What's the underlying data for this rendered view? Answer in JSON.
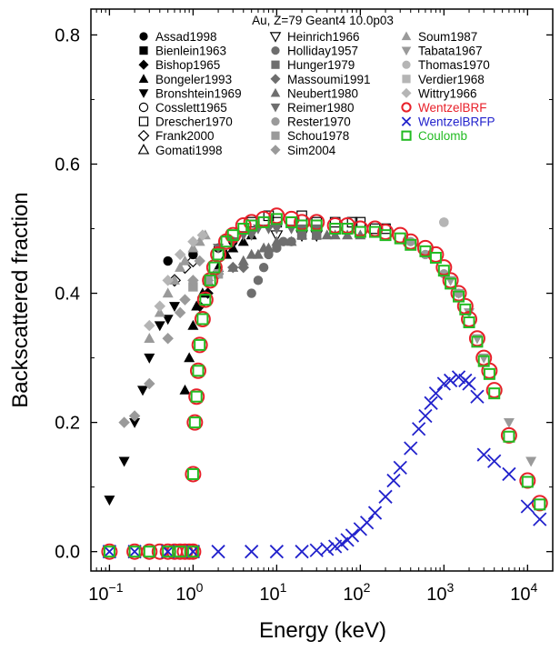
{
  "chart_data": {
    "type": "scatter",
    "title": "Au, Z=79 Geant4 10.0p03",
    "xlabel": "Energy (keV)",
    "ylabel": "Backscattered fraction",
    "xscale": "log",
    "xlim": [
      0.06,
      20000
    ],
    "ylim": [
      -0.03,
      0.84
    ],
    "x_ticks": [
      {
        "value": 0.1,
        "base": "10",
        "exp": "−1"
      },
      {
        "value": 1,
        "base": "10",
        "exp": "0"
      },
      {
        "value": 10,
        "base": "10",
        "exp": "1"
      },
      {
        "value": 100,
        "base": "10",
        "exp": "2"
      },
      {
        "value": 1000,
        "base": "10",
        "exp": "3"
      },
      {
        "value": 10000,
        "base": "10",
        "exp": "4"
      }
    ],
    "y_ticks": [
      {
        "value": 0.0,
        "label": "0.0"
      },
      {
        "value": 0.2,
        "label": "0.2"
      },
      {
        "value": 0.4,
        "label": "0.4"
      },
      {
        "value": 0.6,
        "label": "0.6"
      },
      {
        "value": 0.8,
        "label": "0.8"
      }
    ],
    "grid": false,
    "legend_position": "top",
    "series": [
      {
        "name": "Assad1998",
        "marker": "circle",
        "color": "#000000",
        "points": [
          [
            0.5,
            0.45
          ],
          [
            1,
            0.46
          ],
          [
            2,
            0.47
          ],
          [
            3,
            0.48
          ]
        ]
      },
      {
        "name": "Bienlein1963",
        "marker": "square",
        "color": "#000000",
        "points": []
      },
      {
        "name": "Bishop1965",
        "marker": "diamond",
        "color": "#000000",
        "points": [
          [
            1.2,
            0.38
          ],
          [
            1.5,
            0.4
          ]
        ]
      },
      {
        "name": "Bongeler1993",
        "marker": "triangle-up",
        "color": "#000000",
        "points": [
          [
            0.8,
            0.25
          ],
          [
            0.9,
            0.3
          ],
          [
            1,
            0.35
          ],
          [
            1.1,
            0.38
          ],
          [
            1.3,
            0.4
          ],
          [
            1.5,
            0.42
          ],
          [
            2,
            0.44
          ],
          [
            2.5,
            0.46
          ],
          [
            3,
            0.47
          ],
          [
            4,
            0.48
          ],
          [
            5,
            0.49
          ]
        ]
      },
      {
        "name": "Bronshtein1969",
        "marker": "triangle-down",
        "color": "#000000",
        "points": [
          [
            0.1,
            0.08
          ],
          [
            0.15,
            0.14
          ],
          [
            0.2,
            0.2
          ],
          [
            0.25,
            0.25
          ],
          [
            0.3,
            0.3
          ],
          [
            0.4,
            0.35
          ],
          [
            0.5,
            0.36
          ],
          [
            0.6,
            0.38
          ]
        ]
      },
      {
        "name": "Cosslett1965",
        "marker": "circle-open",
        "color": "#000000",
        "points": []
      },
      {
        "name": "Drescher1970",
        "marker": "square-open",
        "color": "#000000",
        "points": [
          [
            5,
            0.51
          ],
          [
            8,
            0.52
          ],
          [
            10,
            0.51
          ],
          [
            15,
            0.51
          ],
          [
            20,
            0.52
          ],
          [
            30,
            0.51
          ],
          [
            50,
            0.51
          ],
          [
            80,
            0.51
          ],
          [
            100,
            0.51
          ],
          [
            150,
            0.5
          ],
          [
            200,
            0.5
          ]
        ]
      },
      {
        "name": "Frank2000",
        "marker": "diamond-open",
        "color": "#000000",
        "points": [
          [
            0.6,
            0.42
          ],
          [
            0.8,
            0.44
          ],
          [
            1,
            0.45
          ]
        ]
      },
      {
        "name": "Gomati1998",
        "marker": "triangle-up-open",
        "color": "#000000",
        "points": []
      },
      {
        "name": "Heinrich1966",
        "marker": "triangle-down-open",
        "color": "#000000",
        "points": [
          [
            10,
            0.49
          ],
          [
            20,
            0.49
          ],
          [
            30,
            0.49
          ]
        ]
      },
      {
        "name": "Holliday1957",
        "marker": "circle",
        "color": "#6e6e6e",
        "points": [
          [
            5,
            0.4
          ],
          [
            6,
            0.42
          ],
          [
            7,
            0.44
          ],
          [
            8,
            0.46
          ],
          [
            10,
            0.47
          ],
          [
            12,
            0.48
          ],
          [
            15,
            0.48
          ],
          [
            20,
            0.49
          ],
          [
            1000,
            0.51
          ]
        ]
      },
      {
        "name": "Hunger1979",
        "marker": "square",
        "color": "#6e6e6e",
        "points": [
          [
            20,
            0.49
          ],
          [
            30,
            0.49
          ]
        ]
      },
      {
        "name": "Massoumi1991",
        "marker": "diamond",
        "color": "#6e6e6e",
        "points": [
          [
            1.5,
            0.42
          ],
          [
            2,
            0.43
          ],
          [
            3,
            0.44
          ],
          [
            4,
            0.44
          ]
        ]
      },
      {
        "name": "Neubert1980",
        "marker": "triangle-up",
        "color": "#6e6e6e",
        "points": [
          [
            3,
            0.44
          ],
          [
            4,
            0.45
          ],
          [
            5,
            0.46
          ],
          [
            6,
            0.46
          ],
          [
            7,
            0.47
          ],
          [
            8,
            0.47
          ],
          [
            10,
            0.48
          ],
          [
            15,
            0.48
          ],
          [
            20,
            0.49
          ],
          [
            30,
            0.49
          ],
          [
            40,
            0.49
          ],
          [
            50,
            0.49
          ],
          [
            70,
            0.49
          ],
          [
            100,
            0.49
          ]
        ]
      },
      {
        "name": "Reimer1980",
        "marker": "triangle-down",
        "color": "#6e6e6e",
        "points": [
          [
            2,
            0.47
          ],
          [
            3,
            0.48
          ],
          [
            4,
            0.49
          ],
          [
            5,
            0.49
          ],
          [
            6,
            0.5
          ],
          [
            8,
            0.5
          ],
          [
            10,
            0.5
          ],
          [
            15,
            0.5
          ],
          [
            20,
            0.5
          ],
          [
            30,
            0.5
          ]
        ]
      },
      {
        "name": "Rester1970",
        "marker": "circle",
        "color": "#9a9a9a",
        "points": [
          [
            400,
            0.48
          ],
          [
            600,
            0.46
          ],
          [
            1000,
            0.43
          ],
          [
            1500,
            0.4
          ]
        ]
      },
      {
        "name": "Schou1978",
        "marker": "square",
        "color": "#9a9a9a",
        "points": [
          [
            1,
            0.41
          ],
          [
            1.5,
            0.42
          ],
          [
            2,
            0.43
          ]
        ]
      },
      {
        "name": "Sim2004",
        "marker": "diamond",
        "color": "#9a9a9a",
        "points": [
          [
            0.15,
            0.2
          ],
          [
            0.2,
            0.21
          ],
          [
            0.3,
            0.26
          ],
          [
            0.5,
            0.33
          ],
          [
            0.7,
            0.37
          ],
          [
            0.8,
            0.39
          ],
          [
            1,
            0.42
          ],
          [
            1.2,
            0.45
          ]
        ]
      },
      {
        "name": "Soum1987",
        "marker": "triangle-up",
        "color": "#9a9a9a",
        "points": [
          [
            0.3,
            0.33
          ],
          [
            0.4,
            0.37
          ],
          [
            0.5,
            0.4
          ],
          [
            0.6,
            0.42
          ],
          [
            0.7,
            0.44
          ],
          [
            0.8,
            0.45
          ],
          [
            1,
            0.47
          ],
          [
            1.2,
            0.48
          ],
          [
            1.4,
            0.49
          ]
        ]
      },
      {
        "name": "Tabata1967",
        "marker": "triangle-down",
        "color": "#9a9a9a",
        "points": [
          [
            1200,
            0.42
          ],
          [
            1500,
            0.4
          ],
          [
            2000,
            0.37
          ],
          [
            2500,
            0.33
          ],
          [
            3000,
            0.3
          ],
          [
            6000,
            0.2
          ],
          [
            11000,
            0.14
          ]
        ]
      },
      {
        "name": "Thomas1970",
        "marker": "circle",
        "color": "#b5b5b5",
        "points": [
          [
            1000,
            0.51
          ]
        ]
      },
      {
        "name": "Verdier1968",
        "marker": "square",
        "color": "#b5b5b5",
        "points": []
      },
      {
        "name": "Wittry1966",
        "marker": "diamond",
        "color": "#b5b5b5",
        "points": [
          [
            0.3,
            0.35
          ],
          [
            0.4,
            0.38
          ],
          [
            0.5,
            0.42
          ],
          [
            0.7,
            0.46
          ],
          [
            1,
            0.48
          ],
          [
            1.3,
            0.49
          ]
        ]
      },
      {
        "name": "WentzelBRF",
        "marker": "circle-open",
        "color": "#e8202a",
        "points": [
          [
            0.1,
            0.0
          ],
          [
            0.2,
            0.0
          ],
          [
            0.3,
            0.0
          ],
          [
            0.4,
            0.0
          ],
          [
            0.5,
            0.0
          ],
          [
            0.6,
            0.0
          ],
          [
            0.7,
            0.0
          ],
          [
            0.8,
            0.0
          ],
          [
            0.9,
            0.0
          ],
          [
            1.0,
            0.0
          ],
          [
            1.0,
            0.12
          ],
          [
            1.05,
            0.2
          ],
          [
            1.1,
            0.24
          ],
          [
            1.15,
            0.28
          ],
          [
            1.2,
            0.32
          ],
          [
            1.3,
            0.36
          ],
          [
            1.4,
            0.39
          ],
          [
            1.6,
            0.42
          ],
          [
            1.8,
            0.44
          ],
          [
            2,
            0.46
          ],
          [
            2.5,
            0.48
          ],
          [
            3,
            0.49
          ],
          [
            4,
            0.505
          ],
          [
            5,
            0.51
          ],
          [
            7,
            0.515
          ],
          [
            10,
            0.52
          ],
          [
            15,
            0.515
          ],
          [
            20,
            0.51
          ],
          [
            30,
            0.51
          ],
          [
            50,
            0.505
          ],
          [
            70,
            0.505
          ],
          [
            100,
            0.5
          ],
          [
            150,
            0.5
          ],
          [
            200,
            0.495
          ],
          [
            300,
            0.49
          ],
          [
            400,
            0.48
          ],
          [
            600,
            0.47
          ],
          [
            800,
            0.46
          ],
          [
            1000,
            0.44
          ],
          [
            1200,
            0.42
          ],
          [
            1500,
            0.4
          ],
          [
            1800,
            0.38
          ],
          [
            2000,
            0.36
          ],
          [
            2500,
            0.33
          ],
          [
            3000,
            0.3
          ],
          [
            3500,
            0.28
          ],
          [
            4000,
            0.25
          ],
          [
            6000,
            0.18
          ],
          [
            10000,
            0.11
          ],
          [
            14000,
            0.075
          ]
        ]
      },
      {
        "name": "WentzelBRFP",
        "marker": "x",
        "color": "#2222cc",
        "points": [
          [
            0.1,
            0.0
          ],
          [
            0.2,
            0.0
          ],
          [
            0.5,
            0.0
          ],
          [
            1,
            0.0
          ],
          [
            2,
            0.0
          ],
          [
            5,
            0.0
          ],
          [
            10,
            0.0
          ],
          [
            20,
            0.0
          ],
          [
            30,
            0.002
          ],
          [
            40,
            0.004
          ],
          [
            50,
            0.008
          ],
          [
            60,
            0.012
          ],
          [
            70,
            0.018
          ],
          [
            80,
            0.025
          ],
          [
            100,
            0.035
          ],
          [
            120,
            0.045
          ],
          [
            150,
            0.06
          ],
          [
            200,
            0.085
          ],
          [
            250,
            0.11
          ],
          [
            300,
            0.13
          ],
          [
            400,
            0.16
          ],
          [
            500,
            0.19
          ],
          [
            600,
            0.21
          ],
          [
            700,
            0.23
          ],
          [
            800,
            0.245
          ],
          [
            1000,
            0.26
          ],
          [
            1200,
            0.265
          ],
          [
            1500,
            0.27
          ],
          [
            1800,
            0.265
          ],
          [
            2000,
            0.26
          ],
          [
            2500,
            0.24
          ],
          [
            3000,
            0.15
          ],
          [
            4000,
            0.14
          ],
          [
            6000,
            0.12
          ],
          [
            10000,
            0.07
          ],
          [
            14000,
            0.05
          ]
        ]
      },
      {
        "name": "Coulomb",
        "marker": "square-open",
        "color": "#22bb22",
        "points": [
          [
            0.1,
            0.0
          ],
          [
            0.2,
            0.0
          ],
          [
            0.3,
            0.0
          ],
          [
            0.5,
            0.0
          ],
          [
            0.7,
            0.0
          ],
          [
            1.0,
            0.0
          ],
          [
            1.0,
            0.12
          ],
          [
            1.05,
            0.2
          ],
          [
            1.1,
            0.24
          ],
          [
            1.15,
            0.28
          ],
          [
            1.2,
            0.32
          ],
          [
            1.3,
            0.36
          ],
          [
            1.4,
            0.39
          ],
          [
            1.6,
            0.42
          ],
          [
            1.8,
            0.44
          ],
          [
            2,
            0.46
          ],
          [
            2.5,
            0.48
          ],
          [
            3,
            0.49
          ],
          [
            4,
            0.5
          ],
          [
            5,
            0.505
          ],
          [
            7,
            0.51
          ],
          [
            10,
            0.515
          ],
          [
            15,
            0.51
          ],
          [
            20,
            0.505
          ],
          [
            30,
            0.505
          ],
          [
            50,
            0.5
          ],
          [
            70,
            0.5
          ],
          [
            100,
            0.495
          ],
          [
            150,
            0.495
          ],
          [
            200,
            0.49
          ],
          [
            300,
            0.485
          ],
          [
            400,
            0.475
          ],
          [
            600,
            0.465
          ],
          [
            800,
            0.455
          ],
          [
            1000,
            0.435
          ],
          [
            1200,
            0.415
          ],
          [
            1500,
            0.395
          ],
          [
            1800,
            0.375
          ],
          [
            2000,
            0.355
          ],
          [
            2500,
            0.325
          ],
          [
            3000,
            0.295
          ],
          [
            3500,
            0.275
          ],
          [
            4000,
            0.245
          ],
          [
            6000,
            0.178
          ],
          [
            10000,
            0.108
          ],
          [
            14000,
            0.073
          ]
        ]
      }
    ]
  }
}
